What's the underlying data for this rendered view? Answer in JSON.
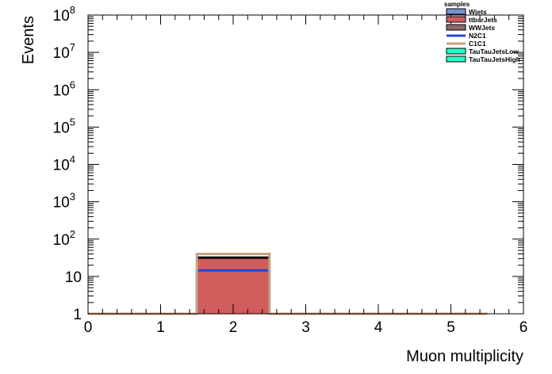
{
  "chart_data": {
    "type": "bar",
    "xlabel": "Muon multiplicity",
    "ylabel": "Events",
    "y_scale": "log",
    "ylim": [
      1,
      100000000
    ],
    "xlim": [
      0,
      6
    ],
    "legend_title": "samples",
    "legend_position": "top-right",
    "x_ticks": [
      "0",
      "1",
      "2",
      "3",
      "4",
      "5",
      "6"
    ],
    "y_ticks": [
      {
        "base": "1",
        "exp": ""
      },
      {
        "base": "10",
        "exp": ""
      },
      {
        "base": "10",
        "exp": "2"
      },
      {
        "base": "10",
        "exp": "3"
      },
      {
        "base": "10",
        "exp": "4"
      },
      {
        "base": "10",
        "exp": "5"
      },
      {
        "base": "10",
        "exp": "6"
      },
      {
        "base": "10",
        "exp": "7"
      },
      {
        "base": "10",
        "exp": "8"
      }
    ],
    "bin_edges": [
      0,
      0.5,
      1.5,
      2.5,
      3.5,
      4.5,
      5.5
    ],
    "series": [
      {
        "name": "Wjets",
        "style": "fill",
        "color": "#7b8fd1",
        "values": [
          0,
          0,
          0,
          0,
          0,
          0
        ]
      },
      {
        "name": "ttbarJets",
        "style": "fill",
        "color": "#d05c5c",
        "values": [
          0,
          0,
          32,
          0,
          0,
          0
        ]
      },
      {
        "name": "WWJets",
        "style": "fill",
        "color": "#8b6a6a",
        "values": [
          0,
          0,
          0,
          0,
          0,
          0
        ]
      },
      {
        "name": "N2C1",
        "style": "line",
        "color": "#2244dd",
        "values": [
          0,
          0,
          14.5,
          0,
          0,
          0
        ]
      },
      {
        "name": "C1C1",
        "style": "line",
        "color": "#c9a080",
        "values": [
          0,
          0,
          40,
          0,
          0,
          0
        ]
      },
      {
        "name": "TauTauJetsLow",
        "style": "fill",
        "color": "#22ffc4",
        "values": [
          0,
          0,
          0,
          0,
          0,
          0
        ]
      },
      {
        "name": "TauTauJetsHigh",
        "style": "fill",
        "color": "#22ffc4",
        "values": [
          0,
          0,
          0,
          0,
          0,
          0
        ]
      }
    ]
  }
}
